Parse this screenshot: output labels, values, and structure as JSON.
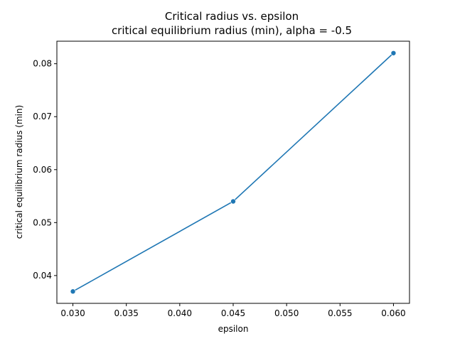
{
  "chart_data": {
    "type": "line",
    "title": "Critical radius vs. epsilon",
    "subtitle": "critical equilibrium radius (min), alpha = -0.5",
    "xlabel": "epsilon",
    "ylabel": "critical equilibrium radius (min)",
    "x": [
      0.03,
      0.045,
      0.06
    ],
    "series": [
      {
        "values": [
          0.037,
          0.054,
          0.082
        ]
      }
    ],
    "xlim": [
      0.0285,
      0.0615
    ],
    "ylim": [
      0.03475,
      0.08425
    ],
    "xticks": [
      0.03,
      0.035,
      0.04,
      0.045,
      0.05,
      0.055,
      0.06
    ],
    "xtick_labels": [
      "0.030",
      "0.035",
      "0.040",
      "0.045",
      "0.050",
      "0.055",
      "0.060"
    ],
    "yticks": [
      0.04,
      0.05,
      0.06,
      0.07,
      0.08
    ],
    "ytick_labels": [
      "0.04",
      "0.05",
      "0.06",
      "0.07",
      "0.08"
    ],
    "grid": false,
    "markers": true,
    "colors": {
      "series": "#1f77b4"
    }
  }
}
